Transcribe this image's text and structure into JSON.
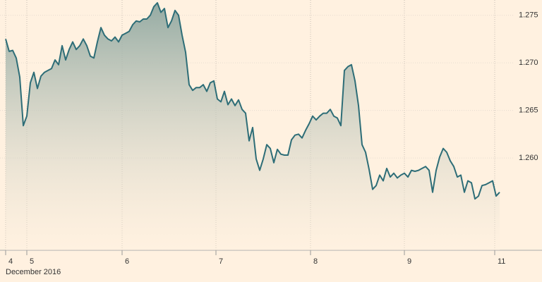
{
  "chart_data": {
    "type": "area",
    "x_label": "December 2016",
    "x": [
      0,
      1,
      2,
      3,
      4,
      5,
      6,
      7,
      8,
      9,
      10,
      11,
      12,
      13,
      14,
      15,
      16,
      17,
      18,
      19,
      20,
      21,
      22,
      23,
      24,
      25,
      26,
      27,
      28,
      29,
      30,
      31,
      32,
      33,
      34,
      35,
      36,
      37,
      38,
      39,
      40,
      41,
      42,
      43,
      44,
      45,
      46,
      47,
      48,
      49,
      50,
      51,
      52,
      53,
      54,
      55,
      56,
      57,
      58,
      59,
      60,
      61,
      62,
      63,
      64,
      65,
      66,
      67,
      68,
      69,
      70,
      71,
      72,
      73,
      74,
      75,
      76,
      77,
      78,
      79,
      80,
      81,
      82,
      83,
      84,
      85,
      86,
      87,
      88,
      89,
      90,
      91,
      92,
      93,
      94,
      95,
      96,
      97,
      98,
      99,
      100,
      101,
      102,
      103,
      104,
      105,
      106,
      107,
      108,
      109,
      110,
      111,
      112,
      113,
      114,
      115,
      116,
      117,
      118,
      119,
      120,
      121,
      122,
      123,
      124,
      125,
      126,
      127,
      128,
      129,
      130,
      131,
      132,
      133,
      134,
      135,
      136,
      137,
      138,
      139,
      140
    ],
    "values": [
      1.2725,
      1.2712,
      1.2713,
      1.2705,
      1.2685,
      1.2634,
      1.2644,
      1.2679,
      1.269,
      1.2673,
      1.2686,
      1.269,
      1.2692,
      1.2694,
      1.2703,
      1.2698,
      1.2718,
      1.2703,
      1.2714,
      1.2722,
      1.2714,
      1.2718,
      1.2725,
      1.2718,
      1.2707,
      1.2705,
      1.2722,
      1.2737,
      1.2729,
      1.2725,
      1.2723,
      1.2727,
      1.2722,
      1.2729,
      1.2731,
      1.2733,
      1.274,
      1.2744,
      1.2743,
      1.2746,
      1.2746,
      1.275,
      1.2759,
      1.2763,
      1.2753,
      1.2757,
      1.2737,
      1.2744,
      1.2755,
      1.275,
      1.2729,
      1.2711,
      1.2677,
      1.2671,
      1.2674,
      1.2674,
      1.2677,
      1.267,
      1.2679,
      1.2681,
      1.2662,
      1.2659,
      1.267,
      1.2656,
      1.2662,
      1.2655,
      1.2661,
      1.2651,
      1.2647,
      1.2618,
      1.2632,
      1.2599,
      1.2587,
      1.2599,
      1.2614,
      1.261,
      1.2595,
      1.2609,
      1.2604,
      1.2603,
      1.2603,
      1.2619,
      1.2624,
      1.2625,
      1.2621,
      1.2629,
      1.2636,
      1.2644,
      1.264,
      1.2644,
      1.2647,
      1.2647,
      1.2651,
      1.2644,
      1.2642,
      1.2634,
      1.2692,
      1.2696,
      1.2698,
      1.2681,
      1.2655,
      1.2614,
      1.2606,
      1.2588,
      1.2567,
      1.2571,
      1.2582,
      1.2576,
      1.2589,
      1.258,
      1.2584,
      1.2579,
      1.2582,
      1.2584,
      1.258,
      1.2587,
      1.2586,
      1.2587,
      1.2589,
      1.2591,
      1.2587,
      1.2564,
      1.2587,
      1.2601,
      1.261,
      1.2606,
      1.2597,
      1.2591,
      1.258,
      1.2582,
      1.2564,
      1.2576,
      1.2574,
      1.2557,
      1.256,
      1.2571,
      1.2572,
      1.2574,
      1.2576,
      1.256,
      1.2564
    ],
    "color": "#2d6d77",
    "xlim": [
      -1.6,
      152
    ],
    "ylim": [
      1.2503,
      1.2766
    ],
    "xticks": [
      {
        "value": 0,
        "label": "4"
      },
      {
        "value": 6,
        "label": "5"
      },
      {
        "value": 33,
        "label": "6"
      },
      {
        "value": 59.6,
        "label": "7"
      },
      {
        "value": 86.4,
        "label": "8"
      },
      {
        "value": 113,
        "label": "9"
      },
      {
        "value": 138.6,
        "label": "11"
      }
    ],
    "yticks": [
      {
        "value": 1.26,
        "label": "1.260"
      },
      1.265,
      {
        "value": 1.27,
        "label": "1.270"
      },
      1.275
    ],
    "grid": true
  }
}
